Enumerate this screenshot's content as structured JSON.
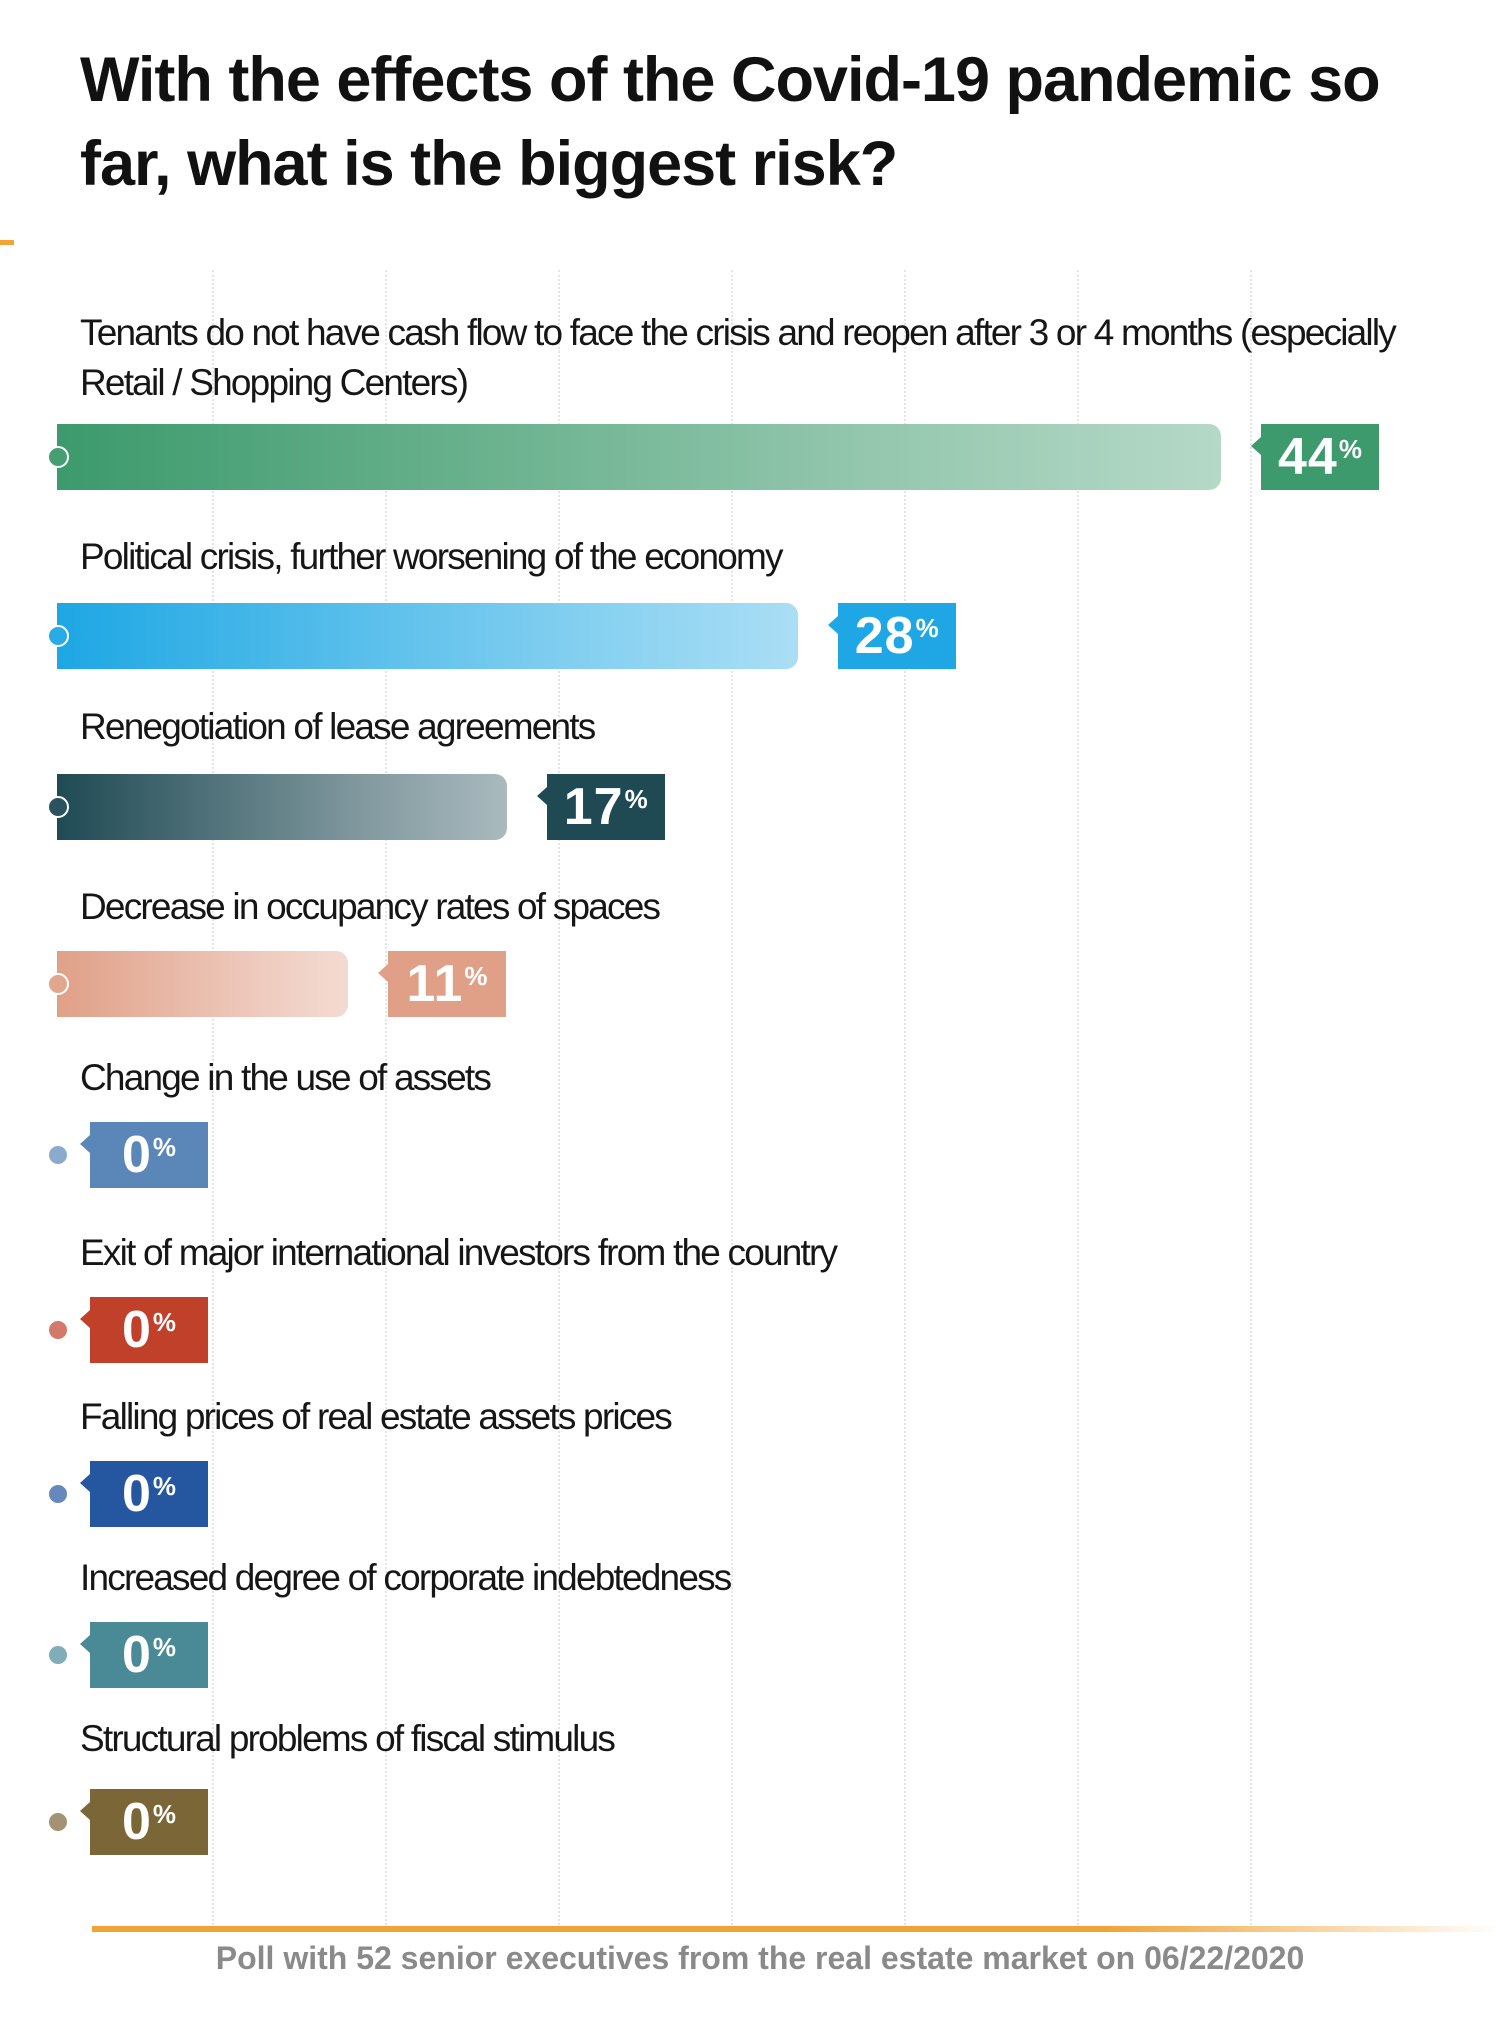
{
  "title": "With the effects of the Covid-19 pandemic so far, what is the biggest risk?",
  "footer": "Poll with 52 senior executives from the real estate market on 06/22/2020",
  "chart_data": {
    "type": "bar",
    "orientation": "horizontal",
    "unit": "%",
    "title": "With the effects of the Covid-19 pandemic so far, what is the biggest risk?",
    "categories": [
      "Tenants do not have cash flow to face the crisis and reopen after 3 or 4 months (especially Retail / Shopping Centers)",
      "Political crisis, further worsening of the economy",
      "Renegotiation of lease agreements",
      "Decrease in occupancy rates of spaces",
      "Change in the use of  assets",
      "Exit of major international investors from the country",
      "Falling prices of real estate assets prices",
      "Increased degree of corporate indebtedness",
      "Structural problems of fiscal stimulus"
    ],
    "values": [
      44,
      28,
      17,
      11,
      0,
      0,
      0,
      0,
      0
    ],
    "value_labels": [
      "44",
      "28",
      "17",
      "11",
      "0",
      "0",
      "0",
      "0",
      "0"
    ],
    "colors": [
      "#3c9a6c",
      "#1ea7e4",
      "#1f4a54",
      "#e0a088",
      "#5b86b8",
      "#c0402a",
      "#2457a0",
      "#4a8a96",
      "#7a6636"
    ],
    "grid": true,
    "xlim": [
      0,
      50
    ]
  }
}
